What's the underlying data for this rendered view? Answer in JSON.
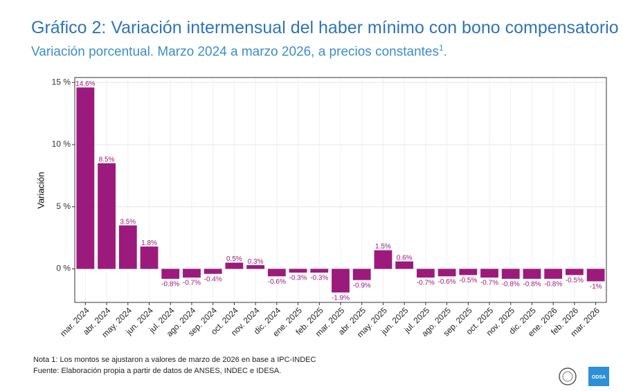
{
  "chart_data": {
    "type": "bar",
    "title": "Gráfico 2: Variación intermensual del haber mínimo con bono compensatorio",
    "subtitle": "Variación porcentual. Marzo 2024 a marzo 2026, a precios constantes",
    "subtitle_superscript": "1",
    "subtitle_end": ".",
    "y_label": "Variación",
    "categories": [
      "mar. 2024",
      "abr. 2024",
      "may. 2024",
      "jun. 2024",
      "jul. 2024",
      "ago. 2024",
      "sep. 2024",
      "oct. 2024",
      "nov. 2024",
      "dic. 2024",
      "ene. 2025",
      "feb. 2025",
      "mar. 2025",
      "abr. 2025",
      "may. 2025",
      "jun. 2025",
      "jul. 2025",
      "ago. 2025",
      "sep. 2025",
      "oct. 2025",
      "nov. 2025",
      "dic. 2025",
      "ene. 2026",
      "feb. 2026",
      "mar. 2026"
    ],
    "values": [
      14.6,
      8.5,
      3.5,
      1.8,
      -0.8,
      -0.7,
      -0.4,
      0.5,
      0.3,
      -0.6,
      -0.3,
      -0.3,
      -1.9,
      -0.9,
      1.5,
      0.6,
      -0.7,
      -0.6,
      -0.5,
      -0.7,
      -0.8,
      -0.8,
      -0.8,
      -0.5,
      -1
    ],
    "value_labels": [
      "14.6%",
      "8.5%",
      "3.5%",
      "1.8%",
      "-0.8%",
      "-0.7%",
      "-0.4%",
      "0.5%",
      "0.3%",
      "-0.6%",
      "-0.3%",
      "-0.3%",
      "-1.9%",
      "-0.9%",
      "1.5%",
      "0.6%",
      "-0.7%",
      "-0.6%",
      "-0.5%",
      "-0.7%",
      "-0.8%",
      "-0.8%",
      "-0.8%",
      "-0.5%",
      "-1%"
    ],
    "color": "#9c1a7c",
    "ylim": [
      -2.7,
      15.4
    ],
    "yticks": [
      {
        "value": 0,
        "label": "0 %"
      },
      {
        "value": 5,
        "label": "5 %"
      },
      {
        "value": 10,
        "label": "10 %"
      },
      {
        "value": 15,
        "label": "15 %"
      }
    ],
    "grid": true,
    "notes": [
      "Nota 1: Los montos se ajustaron a valores de marzo de 2026 en base a IPC-INDEC",
      "Fuente: Elaboración propia a partir de datos de ANSES, INDEC e IDESA."
    ],
    "logo_text": "ODSA"
  }
}
